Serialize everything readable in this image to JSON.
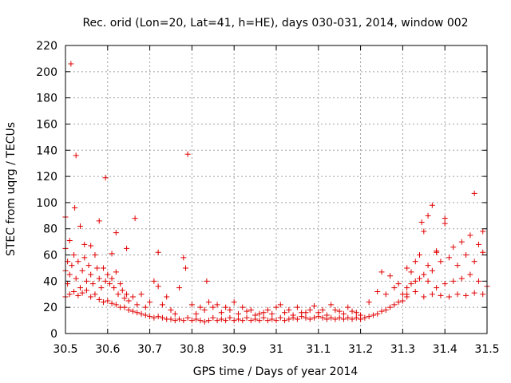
{
  "chart_data": {
    "type": "scatter",
    "title": "Rec. orid (Lon=20, Lat=41, h=HE), days 030-031, 2014, window 002",
    "xlabel": "GPS time / Days of year 2014",
    "ylabel": "STEC from uqrg / TECUs",
    "xlim": [
      30.5,
      31.5
    ],
    "ylim": [
      0,
      220
    ],
    "x_ticks": [
      30.5,
      30.6,
      30.7,
      30.8,
      30.9,
      31.0,
      31.1,
      31.2,
      31.3,
      31.4,
      31.5
    ],
    "x_tick_labels": [
      "30.5",
      "30.6",
      "30.7",
      "30.8",
      "30.9",
      "31",
      "31.1",
      "31.2",
      "31.3",
      "31.4",
      "31.5"
    ],
    "y_ticks": [
      0,
      20,
      40,
      60,
      80,
      100,
      120,
      140,
      160,
      180,
      200,
      220
    ],
    "y_tick_labels": [
      "0",
      "20",
      "40",
      "60",
      "80",
      "100",
      "120",
      "140",
      "160",
      "180",
      "200",
      "220"
    ],
    "grid": true,
    "marker": "+",
    "color": "#e00000",
    "series": [
      {
        "name": "STEC",
        "points": [
          [
            30.5,
            89
          ],
          [
            30.5,
            65
          ],
          [
            30.505,
            55
          ],
          [
            30.51,
            71
          ],
          [
            30.513,
            206
          ],
          [
            30.522,
            96
          ],
          [
            30.525,
            136
          ],
          [
            30.535,
            82
          ],
          [
            30.545,
            68
          ],
          [
            30.56,
            67
          ],
          [
            30.58,
            86
          ],
          [
            30.595,
            119
          ],
          [
            30.61,
            61
          ],
          [
            30.62,
            77
          ],
          [
            30.645,
            65
          ],
          [
            30.665,
            88
          ],
          [
            30.72,
            62
          ],
          [
            30.78,
            58
          ],
          [
            30.785,
            50
          ],
          [
            30.79,
            137
          ],
          [
            30.835,
            40
          ],
          [
            30.5,
            48
          ],
          [
            30.505,
            38
          ],
          [
            30.51,
            45
          ],
          [
            30.515,
            52
          ],
          [
            30.52,
            60
          ],
          [
            30.525,
            42
          ],
          [
            30.53,
            55
          ],
          [
            30.535,
            35
          ],
          [
            30.54,
            48
          ],
          [
            30.545,
            58
          ],
          [
            30.55,
            40
          ],
          [
            30.555,
            52
          ],
          [
            30.56,
            45
          ],
          [
            30.565,
            38
          ],
          [
            30.57,
            60
          ],
          [
            30.575,
            50
          ],
          [
            30.58,
            42
          ],
          [
            30.585,
            35
          ],
          [
            30.59,
            50
          ],
          [
            30.595,
            40
          ],
          [
            30.6,
            45
          ],
          [
            30.605,
            38
          ],
          [
            30.61,
            42
          ],
          [
            30.615,
            35
          ],
          [
            30.62,
            47
          ],
          [
            30.625,
            30
          ],
          [
            30.63,
            38
          ],
          [
            30.635,
            33
          ],
          [
            30.64,
            27
          ],
          [
            30.645,
            30
          ],
          [
            30.65,
            25
          ],
          [
            30.66,
            28
          ],
          [
            30.67,
            22
          ],
          [
            30.68,
            30
          ],
          [
            30.69,
            20
          ],
          [
            30.7,
            24
          ],
          [
            30.71,
            40
          ],
          [
            30.72,
            36
          ],
          [
            30.73,
            22
          ],
          [
            30.74,
            28
          ],
          [
            30.75,
            18
          ],
          [
            30.76,
            15
          ],
          [
            30.77,
            35
          ],
          [
            30.8,
            22
          ],
          [
            30.5,
            28
          ],
          [
            30.51,
            30
          ],
          [
            30.52,
            32
          ],
          [
            30.53,
            29
          ],
          [
            30.54,
            31
          ],
          [
            30.55,
            33
          ],
          [
            30.56,
            28
          ],
          [
            30.57,
            30
          ],
          [
            30.58,
            26
          ],
          [
            30.59,
            24
          ],
          [
            30.6,
            25
          ],
          [
            30.61,
            23
          ],
          [
            30.62,
            22
          ],
          [
            30.63,
            20
          ],
          [
            30.64,
            20
          ],
          [
            30.65,
            18
          ],
          [
            30.66,
            17
          ],
          [
            30.67,
            16
          ],
          [
            30.68,
            15
          ],
          [
            30.69,
            14
          ],
          [
            30.7,
            13
          ],
          [
            30.71,
            12
          ],
          [
            30.72,
            13
          ],
          [
            30.73,
            12
          ],
          [
            30.74,
            11
          ],
          [
            30.75,
            11
          ],
          [
            30.76,
            10
          ],
          [
            30.77,
            11
          ],
          [
            30.78,
            10
          ],
          [
            30.79,
            12
          ],
          [
            30.8,
            10
          ],
          [
            30.81,
            11
          ],
          [
            30.82,
            10
          ],
          [
            30.83,
            9
          ],
          [
            30.84,
            10
          ],
          [
            30.85,
            12
          ],
          [
            30.86,
            10
          ],
          [
            30.87,
            11
          ],
          [
            30.88,
            10
          ],
          [
            30.89,
            12
          ],
          [
            30.9,
            10
          ],
          [
            30.91,
            11
          ],
          [
            30.92,
            10
          ],
          [
            30.93,
            12
          ],
          [
            30.94,
            10
          ],
          [
            30.95,
            11
          ],
          [
            30.96,
            10
          ],
          [
            30.97,
            12
          ],
          [
            30.98,
            10
          ],
          [
            30.99,
            11
          ],
          [
            30.81,
            15
          ],
          [
            30.83,
            18
          ],
          [
            30.85,
            20
          ],
          [
            30.87,
            16
          ],
          [
            30.89,
            18
          ],
          [
            30.91,
            15
          ],
          [
            30.93,
            17
          ],
          [
            30.95,
            14
          ],
          [
            30.97,
            16
          ],
          [
            30.99,
            15
          ],
          [
            30.82,
            20
          ],
          [
            30.84,
            24
          ],
          [
            30.86,
            22
          ],
          [
            30.88,
            20
          ],
          [
            30.9,
            24
          ],
          [
            30.92,
            20
          ],
          [
            30.94,
            18
          ],
          [
            30.96,
            15
          ],
          [
            30.98,
            18
          ],
          [
            31.0,
            20
          ],
          [
            31.0,
            10
          ],
          [
            31.01,
            12
          ],
          [
            31.02,
            10
          ],
          [
            31.03,
            11
          ],
          [
            31.04,
            12
          ],
          [
            31.05,
            11
          ],
          [
            31.06,
            13
          ],
          [
            31.07,
            12
          ],
          [
            31.08,
            11
          ],
          [
            31.09,
            12
          ],
          [
            31.1,
            13
          ],
          [
            31.11,
            12
          ],
          [
            31.12,
            11
          ],
          [
            31.13,
            12
          ],
          [
            31.14,
            11
          ],
          [
            31.15,
            12
          ],
          [
            31.16,
            11
          ],
          [
            31.17,
            12
          ],
          [
            31.18,
            11
          ],
          [
            31.19,
            12
          ],
          [
            31.2,
            11
          ],
          [
            31.21,
            12
          ],
          [
            31.22,
            13
          ],
          [
            31.23,
            14
          ],
          [
            31.24,
            15
          ],
          [
            31.25,
            17
          ],
          [
            31.26,
            18
          ],
          [
            31.27,
            20
          ],
          [
            31.28,
            22
          ],
          [
            31.29,
            24
          ],
          [
            31.01,
            22
          ],
          [
            31.03,
            18
          ],
          [
            31.05,
            20
          ],
          [
            31.07,
            16
          ],
          [
            31.09,
            21
          ],
          [
            31.11,
            18
          ],
          [
            31.13,
            22
          ],
          [
            31.15,
            17
          ],
          [
            31.17,
            20
          ],
          [
            31.19,
            16
          ],
          [
            31.02,
            16
          ],
          [
            31.04,
            14
          ],
          [
            31.06,
            16
          ],
          [
            31.08,
            18
          ],
          [
            31.1,
            16
          ],
          [
            31.12,
            14
          ],
          [
            31.14,
            18
          ],
          [
            31.16,
            15
          ],
          [
            31.18,
            17
          ],
          [
            31.2,
            14
          ],
          [
            31.22,
            24
          ],
          [
            31.24,
            32
          ],
          [
            31.25,
            47
          ],
          [
            31.26,
            30
          ],
          [
            31.27,
            44
          ],
          [
            31.28,
            35
          ],
          [
            31.29,
            38
          ],
          [
            31.3,
            30
          ],
          [
            31.31,
            28
          ],
          [
            31.3,
            25
          ],
          [
            31.32,
            47
          ],
          [
            31.33,
            40
          ],
          [
            31.34,
            60
          ],
          [
            31.345,
            85
          ],
          [
            31.35,
            78
          ],
          [
            31.36,
            90
          ],
          [
            31.37,
            98
          ],
          [
            31.38,
            63
          ],
          [
            31.4,
            88
          ],
          [
            31.4,
            84
          ],
          [
            31.42,
            66
          ],
          [
            31.44,
            70
          ],
          [
            31.46,
            75
          ],
          [
            31.47,
            107
          ],
          [
            31.48,
            68
          ],
          [
            31.49,
            78
          ],
          [
            31.31,
            50
          ],
          [
            31.33,
            55
          ],
          [
            31.35,
            45
          ],
          [
            31.36,
            52
          ],
          [
            31.37,
            48
          ],
          [
            31.38,
            62
          ],
          [
            31.39,
            55
          ],
          [
            31.41,
            58
          ],
          [
            31.43,
            52
          ],
          [
            31.45,
            60
          ],
          [
            31.47,
            55
          ],
          [
            31.49,
            62
          ],
          [
            31.31,
            35
          ],
          [
            31.32,
            38
          ],
          [
            31.34,
            42
          ],
          [
            31.36,
            40
          ],
          [
            31.38,
            35
          ],
          [
            31.4,
            38
          ],
          [
            31.42,
            40
          ],
          [
            31.44,
            42
          ],
          [
            31.46,
            45
          ],
          [
            31.48,
            40
          ],
          [
            31.5,
            36
          ],
          [
            31.31,
            30
          ],
          [
            31.33,
            32
          ],
          [
            31.35,
            28
          ],
          [
            31.37,
            30
          ],
          [
            31.39,
            29
          ],
          [
            31.41,
            28
          ],
          [
            31.43,
            30
          ],
          [
            31.45,
            29
          ],
          [
            31.47,
            31
          ],
          [
            31.49,
            30
          ]
        ]
      }
    ]
  }
}
